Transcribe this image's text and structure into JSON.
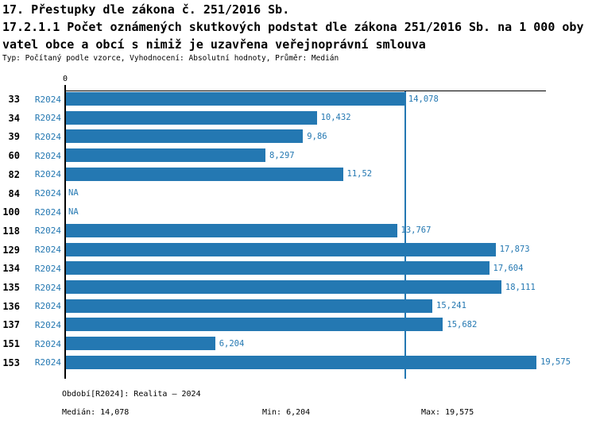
{
  "accent_color": "#2478b2",
  "header": {
    "title_line1": "17. Přestupky dle zákona č. 251/2016 Sb.",
    "title_line2": "17.2.1.1 Počet oznámených skutkových podstat dle zákona 251/2016 Sb. na 1 000 oby",
    "title_line3": "vatel obce a obcí s nimiž je uzavřena veřejnoprávní smlouva",
    "subtitle": "Typ: Počítaný podle vzorce, Vyhodnocení: Absolutní hodnoty, Průměr: Medián"
  },
  "chart_data": {
    "type": "bar",
    "orientation": "horizontal",
    "title": "17.2.1.1 Počet oznámených skutkových podstat dle zákona 251/2016 Sb. na 1 000 obyvatel obce a obcí s nimiž je uzavřena veřejnoprávní smlouva",
    "categories": [
      "33",
      "34",
      "39",
      "60",
      "82",
      "84",
      "100",
      "118",
      "129",
      "134",
      "135",
      "136",
      "137",
      "151",
      "153"
    ],
    "series": [
      {
        "name": "R2024",
        "values": [
          14.078,
          10.432,
          9.86,
          8.297,
          11.52,
          null,
          null,
          13.767,
          17.873,
          17.604,
          18.111,
          15.241,
          15.682,
          6.204,
          19.575
        ]
      }
    ],
    "value_labels": [
      "14,078",
      "10,432",
      "9,86",
      "8,297",
      "11,52",
      "NA",
      "NA",
      "13,767",
      "17,873",
      "17,604",
      "18,111",
      "15,241",
      "15,682",
      "6,204",
      "19,575"
    ],
    "na_text": "NA",
    "xlim": [
      0,
      20
    ],
    "x_tick_labels": [
      "0"
    ],
    "median_value": 14.078,
    "bar_color": "#2478b2",
    "median_line_color": "#2478b2",
    "grid": false,
    "legend_position": "none"
  },
  "footer": {
    "period": "Období[R2024]: Realita – 2024",
    "median": "Medián: 14,078",
    "min": "Min: 6,204",
    "max": "Max: 19,575"
  }
}
